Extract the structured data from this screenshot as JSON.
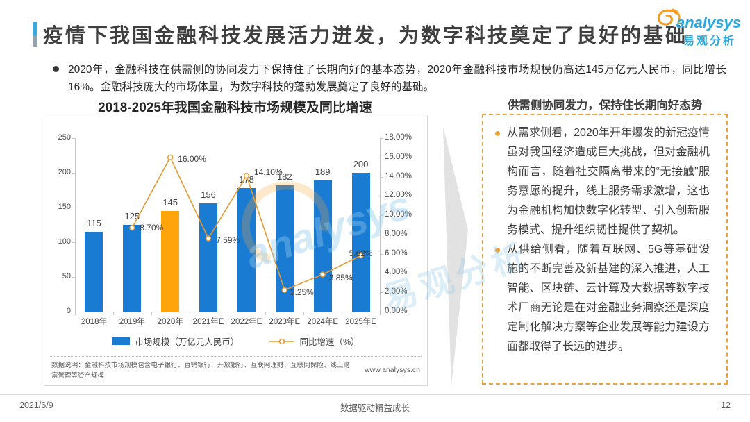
{
  "page": {
    "title": "疫情下我国金融科技发展活力迸发，为数字科技奠定了良好的基础",
    "logo": {
      "brand_en": "analysys",
      "brand_cn": "易观分析"
    },
    "summary": "2020年，金融科技在供需侧的协同发力下保持住了长期向好的基本态势，2020年金融科技市场规模仍高达145万亿元人民币，同比增长16%。金融科技庞大的市场体量，为数字科技的蓬勃发展奠定了良好的基础。",
    "watermark_en": "analysys",
    "watermark_cn": "易观分析",
    "footer": {
      "date": "2021/6/9",
      "slogan": "数据驱动精益成长",
      "page_number": "12"
    }
  },
  "chart_data": {
    "type": "bar+line",
    "title": "2018-2025年我国金融科技市场规模及同比增速",
    "categories": [
      "2018年",
      "2019年",
      "2020年",
      "2021年E",
      "2022年E",
      "2023年E",
      "2024年E",
      "2025年E"
    ],
    "series": [
      {
        "name": "市场规模（万亿元人民币）",
        "chart": "bar",
        "values": [
          115,
          125,
          145,
          156,
          178,
          182,
          189,
          200
        ],
        "color": "#1A7BD2",
        "highlight_index": 2,
        "highlight_color": "#FFA40A"
      },
      {
        "name": "同比增速（%）",
        "chart": "line",
        "values": [
          null,
          8.7,
          16.0,
          7.59,
          14.1,
          2.25,
          3.85,
          5.82
        ],
        "point_labels": [
          null,
          "8.70%",
          "16.00%",
          "7.59%",
          "14.10%",
          "2.25%",
          "3.85%",
          "5.82%"
        ],
        "color": "#E39A33"
      }
    ],
    "left_axis": {
      "min": 0,
      "max": 250,
      "ticks": [
        0,
        50,
        100,
        150,
        200,
        250
      ]
    },
    "right_axis": {
      "min": 0,
      "max": 18,
      "ticks": [
        "0.00%",
        "2.00%",
        "4.00%",
        "6.00%",
        "8.00%",
        "10.00%",
        "12.00%",
        "14.00%",
        "16.00%",
        "18.00%"
      ]
    },
    "legend_position": "bottom",
    "grid": "off",
    "footnote": "数据说明：金融科技市场规模包含电子银行、直销银行、开放银行、互联网理财、互联网保险、线上财富管理等资产规模",
    "source_url": "www.analysys.cn"
  },
  "side_panel": {
    "title": "供需侧协同发力，保持住长期向好态势",
    "bullets": [
      "从需求侧看，2020年开年爆发的新冠疫情虽对我国经济造成巨大挑战，但对金融机构而言，随着社交隔离带来的“无接触”服务意愿的提升，线上服务需求激增，这也为金融机构加快数字化转型、引入创新服务模式、提升组织韧性提供了契机。",
      "从供给侧看，随着互联网、5G等基础设施的不断完善及新基建的深入推进，人工智能、区块链、云计算及大数据等数字技术厂商无论是在对金融业务洞察还是深度定制化解决方案等企业发展等能力建设方面都取得了长远的进步。"
    ]
  }
}
